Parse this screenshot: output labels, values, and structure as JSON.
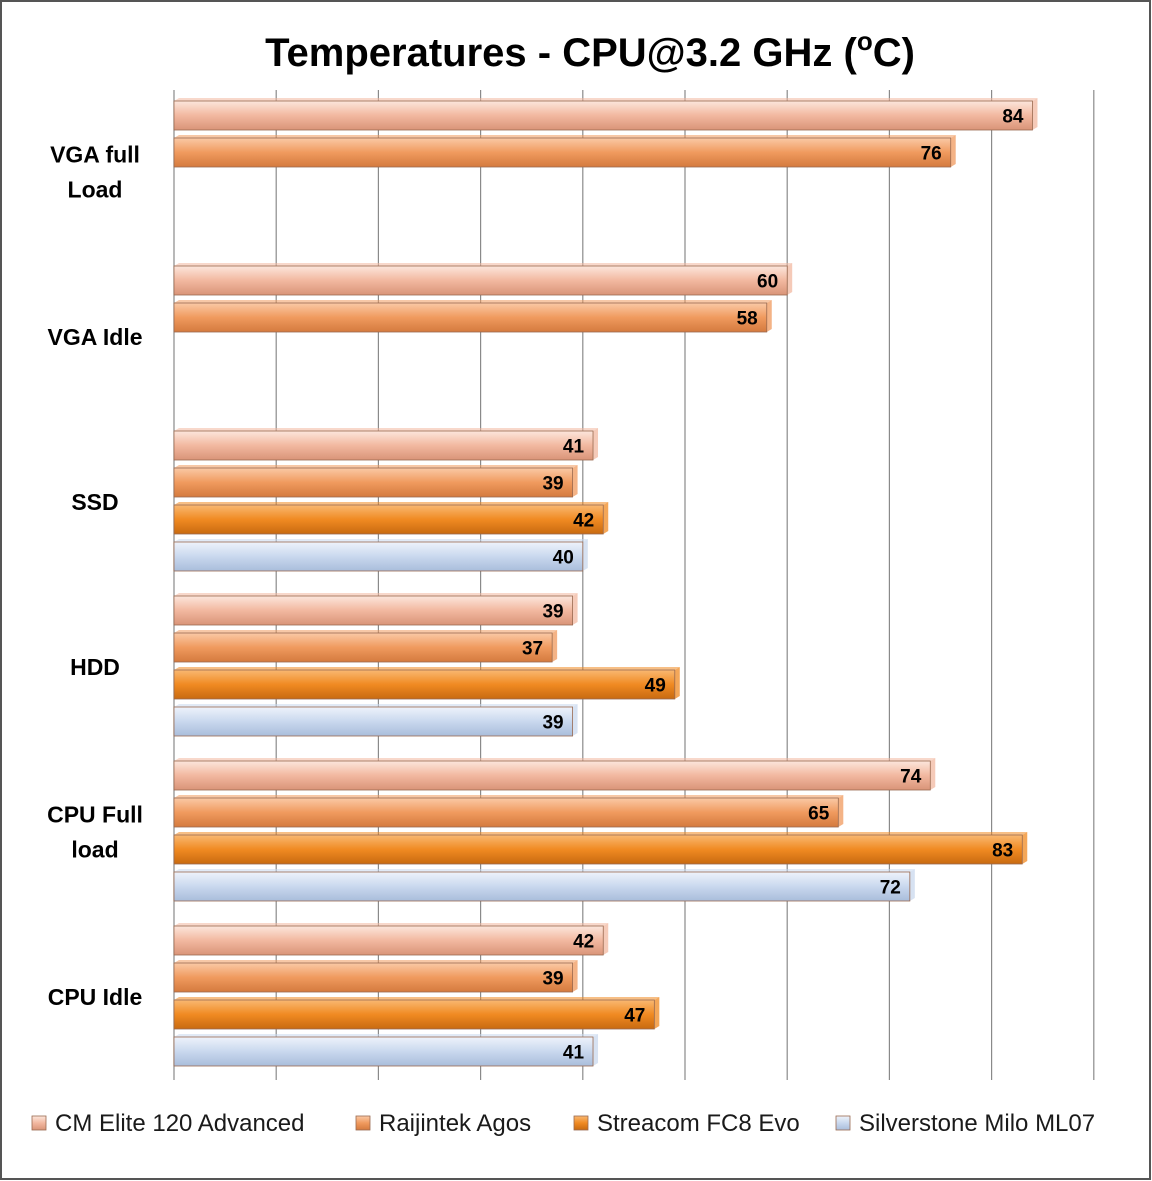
{
  "chart_data": {
    "type": "bar",
    "orientation": "horizontal",
    "title_main": "Temperatures - CPU@3.2 GHz (",
    "title_sup": "o",
    "title_end": "C)",
    "xlim": [
      0,
      90
    ],
    "grid": true,
    "legend_position": "bottom",
    "categories": [
      [
        "VGA full",
        "Load"
      ],
      [
        "VGA Idle"
      ],
      [
        "SSD"
      ],
      [
        "HDD"
      ],
      [
        "CPU Full",
        "load"
      ],
      [
        "CPU Idle"
      ]
    ],
    "series": [
      {
        "name": "CM Elite 120 Advanced",
        "color": "#F2B8A0",
        "values": [
          84,
          60,
          41,
          39,
          74,
          42
        ]
      },
      {
        "name": "Raijintek Agos",
        "color": "#F09A5E",
        "values": [
          76,
          58,
          39,
          37,
          65,
          39
        ]
      },
      {
        "name": "Streacom FC8 Evo",
        "color": "#F08A22",
        "values": [
          null,
          null,
          42,
          49,
          83,
          47
        ]
      },
      {
        "name": "Silverstone Milo ML07",
        "color": "#C9D8EE",
        "values": [
          null,
          null,
          40,
          39,
          72,
          41
        ]
      }
    ]
  }
}
